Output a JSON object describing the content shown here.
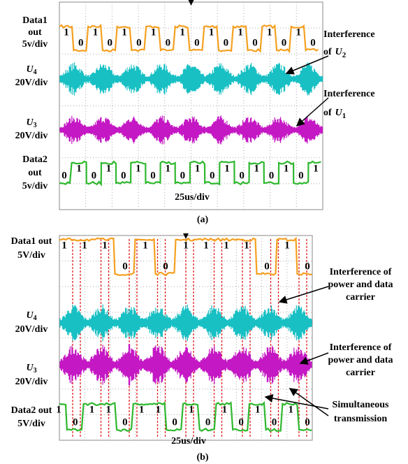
{
  "panels": [
    {
      "caption": "(a)",
      "timebase": "25us/div",
      "channels": [
        {
          "lines": [
            "Data1",
            "out",
            "5v/div"
          ],
          "bits": [
            "1",
            "0",
            "1",
            "0",
            "1",
            "0",
            "1",
            "0",
            "1",
            "0",
            "1",
            "0",
            "1",
            "0",
            "1",
            "0",
            "1",
            "0"
          ]
        },
        {
          "symbol": "U",
          "subscript": "4",
          "scale": "20V/div"
        },
        {
          "symbol": "U",
          "subscript": "3",
          "scale": "20V/div"
        },
        {
          "lines": [
            "Data2",
            "out",
            "5v/div"
          ],
          "bits": [
            "0",
            "1",
            "0",
            "1",
            "0",
            "1",
            "0",
            "1",
            "0",
            "1",
            "0",
            "1",
            "0",
            "1",
            "0",
            "1",
            "0",
            "1"
          ]
        }
      ],
      "annotations": [
        {
          "text": [
            "Interference",
            "of"
          ],
          "symbol": "U",
          "subscript": "2"
        },
        {
          "text": [
            "Interference",
            "of"
          ],
          "symbol": "U",
          "subscript": "1"
        }
      ]
    },
    {
      "caption": "(b)",
      "timebase": "25us/div",
      "channels": [
        {
          "lines": [
            "Data1 out",
            "5V/div"
          ],
          "bits": [
            "1",
            "1",
            "1",
            "0",
            "1",
            "0",
            "1",
            "1",
            "1",
            "1",
            "0",
            "1",
            "0"
          ]
        },
        {
          "symbol": "U",
          "subscript": "4",
          "scale": "20V/div"
        },
        {
          "symbol": "U",
          "subscript": "3",
          "scale": "20V/div"
        },
        {
          "lines": [
            "Data2 out",
            "5V/div"
          ],
          "bits": [
            "1",
            "0",
            "1",
            "1",
            "0",
            "1",
            "1",
            "0",
            "1",
            "0",
            "1",
            "0",
            "1",
            "0",
            "1",
            "0"
          ]
        }
      ],
      "annotations": [
        {
          "text": [
            "Interference of",
            "power and data",
            "carrier"
          ]
        },
        {
          "text": [
            "Interference of",
            "power and data",
            "carrier"
          ]
        },
        {
          "text": [
            "Simultaneous",
            "transmission"
          ]
        }
      ]
    }
  ]
}
